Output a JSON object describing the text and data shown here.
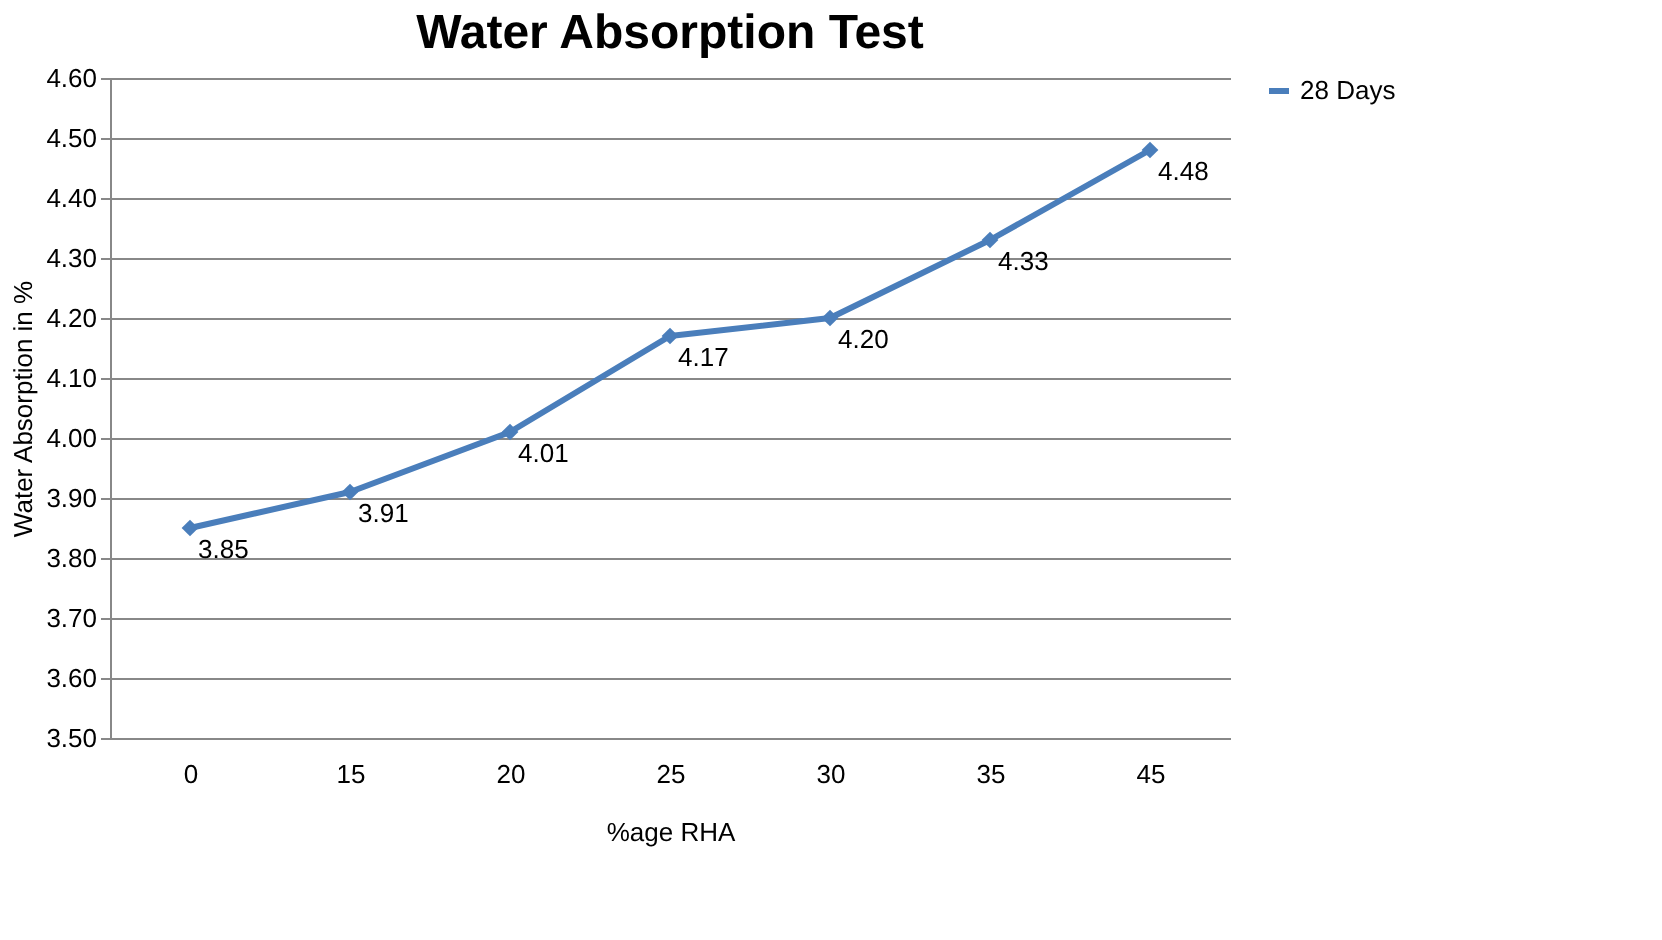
{
  "chart_data": {
    "type": "line",
    "title": "Water Absorption Test",
    "xlabel": "%age RHA",
    "ylabel": "Water Absorption in %",
    "categories": [
      "0",
      "15",
      "20",
      "25",
      "30",
      "35",
      "45"
    ],
    "series": [
      {
        "name": "28 Days",
        "color": "#4a7ebb",
        "values": [
          3.85,
          3.91,
          4.01,
          4.17,
          4.2,
          4.33,
          4.48
        ],
        "value_labels": [
          "3.85",
          "3.91",
          "4.01",
          "4.17",
          "4.20",
          "4.33",
          "4.48"
        ]
      }
    ],
    "ylim": [
      3.5,
      4.6
    ],
    "yticks": [
      {
        "value": 3.5,
        "label": "3.50"
      },
      {
        "value": 3.6,
        "label": "3.60"
      },
      {
        "value": 3.7,
        "label": "3.70"
      },
      {
        "value": 3.8,
        "label": "3.80"
      },
      {
        "value": 3.9,
        "label": "3.90"
      },
      {
        "value": 4.0,
        "label": "4.00"
      },
      {
        "value": 4.1,
        "label": "4.10"
      },
      {
        "value": 4.2,
        "label": "4.20"
      },
      {
        "value": 4.3,
        "label": "4.30"
      },
      {
        "value": 4.4,
        "label": "4.40"
      },
      {
        "value": 4.5,
        "label": "4.50"
      },
      {
        "value": 4.6,
        "label": "4.60"
      }
    ],
    "grid": "y",
    "legend": "right",
    "marker": "diamond",
    "line_style": "solid"
  }
}
